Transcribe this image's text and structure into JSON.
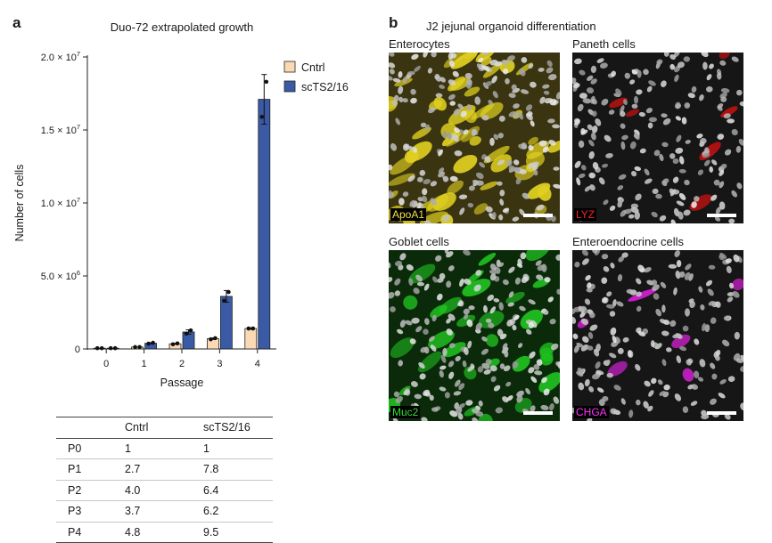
{
  "panel_a": {
    "letter": "a",
    "table": {
      "headers": [
        "",
        "Cntrl",
        "scTS2/16"
      ],
      "rows": [
        [
          "P0",
          "1",
          "1"
        ],
        [
          "P1",
          "2.7",
          "7.8"
        ],
        [
          "P2",
          "4.0",
          "6.4"
        ],
        [
          "P3",
          "3.7",
          "6.2"
        ],
        [
          "P4",
          "4.8",
          "9.5"
        ]
      ]
    }
  },
  "chart_data": {
    "type": "bar",
    "title": "Duo-72 extrapolated growth",
    "xlabel": "Passage",
    "ylabel": "Number of cells",
    "categories": [
      "0",
      "1",
      "2",
      "3",
      "4"
    ],
    "ylim": [
      0,
      20000000
    ],
    "yticks": [
      {
        "value": 0,
        "label": "0"
      },
      {
        "value": 5000000,
        "label": "5.0 × 10",
        "exp": "6"
      },
      {
        "value": 10000000,
        "label": "1.0 × 10",
        "exp": "7"
      },
      {
        "value": 15000000,
        "label": "1.5 × 10",
        "exp": "7"
      },
      {
        "value": 20000000,
        "label": "2.0 × 10",
        "exp": "7"
      }
    ],
    "legend_position": "top-right",
    "series": [
      {
        "name": "Cntrl",
        "color": "#fbd9b4",
        "values": [
          50000,
          130000,
          350000,
          700000,
          1400000
        ],
        "errors": [
          0,
          0,
          30000,
          50000,
          50000
        ],
        "points": [
          [
            50000,
            50000
          ],
          [
            130000,
            130000
          ],
          [
            320000,
            380000
          ],
          [
            660000,
            740000
          ],
          [
            1400000,
            1400000
          ]
        ]
      },
      {
        "name": "scTS2/16",
        "color": "#3a5aa6",
        "values": [
          50000,
          390000,
          1160000,
          3600000,
          17100000
        ],
        "errors": [
          0,
          40000,
          150000,
          400000,
          1700000
        ],
        "points": [
          [
            50000,
            50000
          ],
          [
            360000,
            420000
          ],
          [
            1050000,
            1270000
          ],
          [
            3300000,
            3900000
          ],
          [
            15900000,
            18300000
          ]
        ]
      }
    ]
  },
  "panel_b": {
    "letter": "b",
    "title": "J2 jejunal organoid differentiation",
    "images": [
      {
        "label": "Enterocytes",
        "stain": "ApoA1",
        "stain_color": "#f0e040",
        "tint": "#e0d020"
      },
      {
        "label": "Paneth cells",
        "stain": "LYZ",
        "stain_color": "#ff2020",
        "tint": "#e01010"
      },
      {
        "label": "Goblet cells",
        "stain": "Muc2",
        "stain_color": "#30e030",
        "tint": "#20c020"
      },
      {
        "label": "Enteroendocrine cells",
        "stain": "CHGA",
        "stain_color": "#ff30ff",
        "tint": "#e020e0"
      }
    ]
  }
}
